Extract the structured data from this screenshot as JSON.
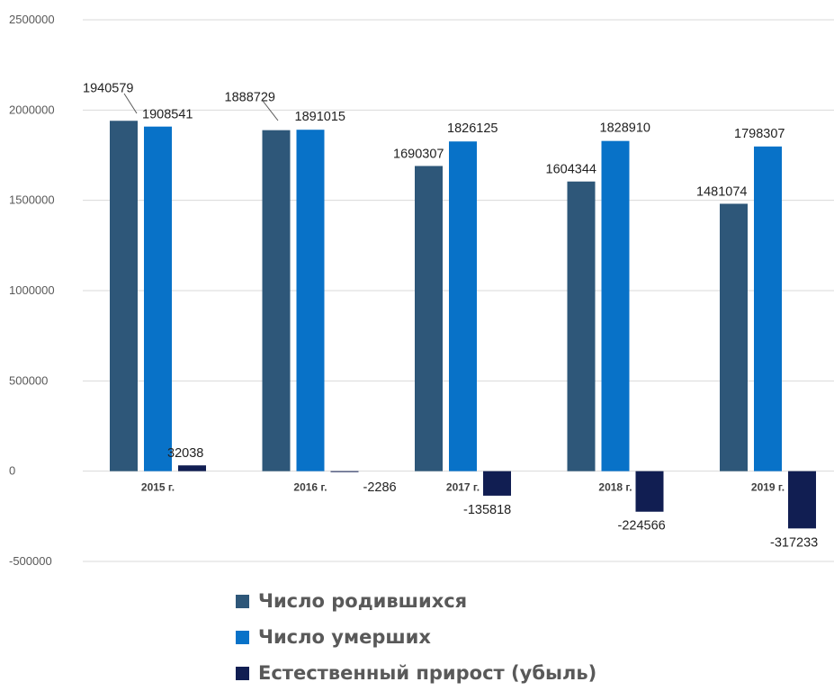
{
  "chart_data": {
    "type": "bar",
    "categories": [
      "2015 г.",
      "2016 г.",
      "2017 г.",
      "2018 г.",
      "2019 г."
    ],
    "series": [
      {
        "name": "Число родившихся",
        "color": "#2e5779",
        "values": [
          1940579,
          1888729,
          1690307,
          1604344,
          1481074
        ]
      },
      {
        "name": "Число умерших",
        "color": "#0872c8",
        "values": [
          1908541,
          1891015,
          1826125,
          1828910,
          1798307
        ]
      },
      {
        "name": "Естественный прирост (убыль)",
        "color": "#111e52",
        "values": [
          32038,
          -2286,
          -135818,
          -224566,
          -317233
        ]
      }
    ],
    "y_ticks": [
      2500000,
      2000000,
      1500000,
      1000000,
      500000,
      0,
      -500000
    ],
    "ylim": [
      -500000,
      2500000
    ],
    "grid": true,
    "legend_position": "bottom",
    "data_labels": true
  }
}
